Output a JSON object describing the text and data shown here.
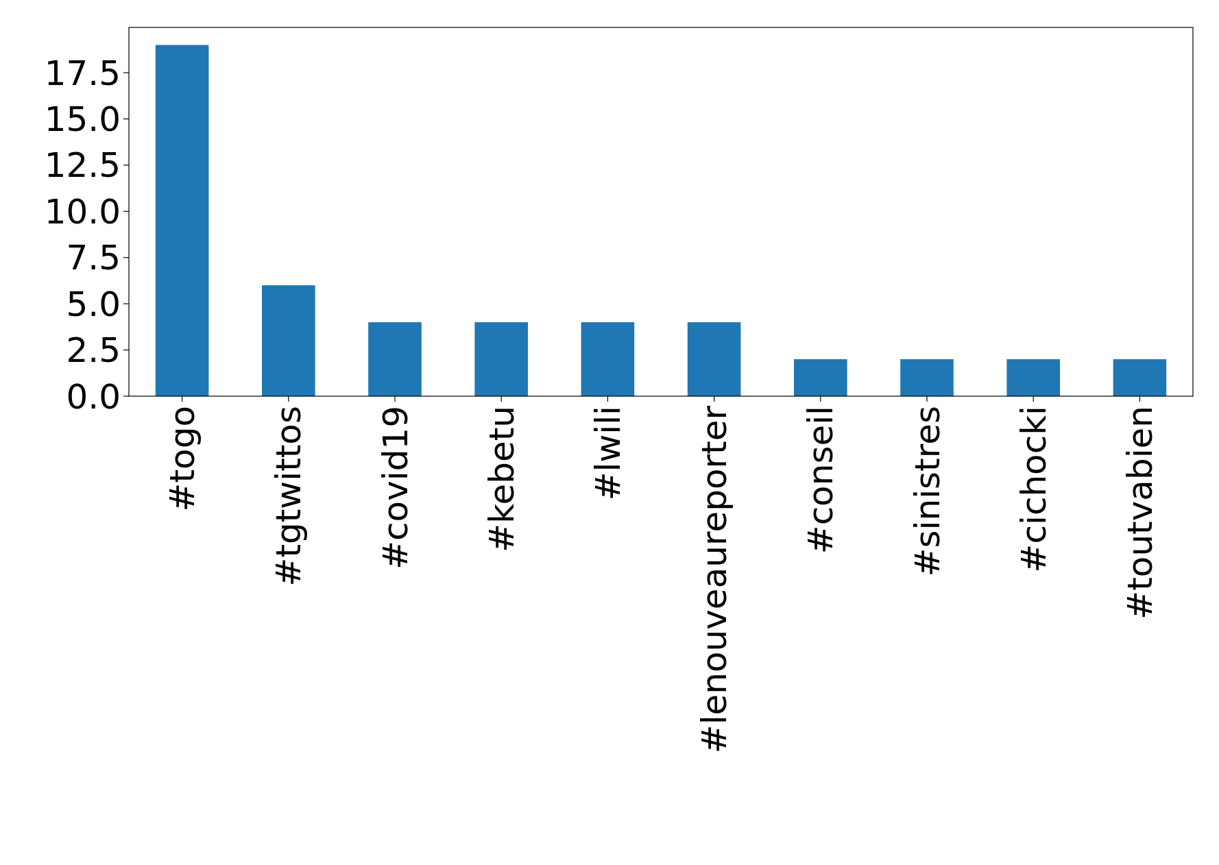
{
  "chart_data": {
    "type": "bar",
    "categories": [
      "#togo",
      "#tgtwittos",
      "#covid19",
      "#kebetu",
      "#lwili",
      "#lenouveaureporter",
      "#conseil",
      "#sinistres",
      "#cichocki",
      "#toutvabien"
    ],
    "values": [
      19,
      6,
      4,
      4,
      4,
      4,
      2,
      2,
      2,
      2
    ],
    "color": "#1f77b4",
    "ylim": [
      0,
      19.95
    ],
    "yticks": [
      {
        "value": 0,
        "label": "0.0"
      },
      {
        "value": 2.5,
        "label": "2.5"
      },
      {
        "value": 5,
        "label": "5.0"
      },
      {
        "value": 7.5,
        "label": "7.5"
      },
      {
        "value": 10,
        "label": "10.0"
      },
      {
        "value": 12.5,
        "label": "12.5"
      },
      {
        "value": 15,
        "label": "15.0"
      },
      {
        "value": 17.5,
        "label": "17.5"
      }
    ],
    "grid": false
  }
}
